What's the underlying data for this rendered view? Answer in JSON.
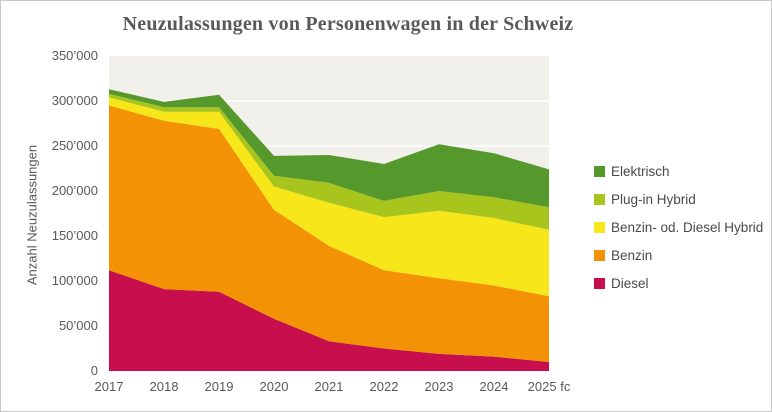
{
  "chart": {
    "title": "Neuzulassungen von Personenwagen in der Schweiz",
    "y_axis_title": "Anzahl Neuzulassungen"
  },
  "chart_data": {
    "type": "area",
    "stacked": true,
    "title": "Neuzulassungen von Personenwagen in der Schweiz",
    "xlabel": "",
    "ylabel": "Anzahl Neuzulassungen",
    "categories": [
      "2017",
      "2018",
      "2019",
      "2020",
      "2021",
      "2022",
      "2023",
      "2024",
      "2025 fc"
    ],
    "series": [
      {
        "name": "Diesel",
        "color": "#c80f4d",
        "values": [
          112000,
          91000,
          88000,
          58000,
          33000,
          25000,
          19000,
          16000,
          10000
        ]
      },
      {
        "name": "Benzin",
        "color": "#f39204",
        "values": [
          183000,
          187000,
          181000,
          121000,
          106000,
          87000,
          84000,
          79000,
          73000
        ]
      },
      {
        "name": "Benzin- od. Diesel Hybrid",
        "color": "#f7e619",
        "values": [
          9000,
          10000,
          19000,
          26000,
          48000,
          59000,
          75000,
          75000,
          74000
        ]
      },
      {
        "name": "Plug-in Hybrid",
        "color": "#a7c51c",
        "values": [
          4000,
          5000,
          5000,
          12000,
          22000,
          18000,
          22000,
          23000,
          25000
        ]
      },
      {
        "name": "Elektrisch",
        "color": "#55992d",
        "values": [
          5000,
          6000,
          14000,
          22000,
          31000,
          41000,
          52000,
          49000,
          42000
        ]
      }
    ],
    "ylim": [
      0,
      350000
    ],
    "y_tick_step": 50000,
    "y_tick_labels": [
      "0",
      "50’000",
      "100’000",
      "150’000",
      "200’000",
      "250’000",
      "300’000",
      "350’000"
    ],
    "grid": true,
    "legend_position": "right",
    "legend_order_top_to_bottom": [
      "Elektrisch",
      "Plug-in Hybrid",
      "Benzin- od. Diesel Hybrid",
      "Benzin",
      "Diesel"
    ]
  },
  "colors": {
    "plot_background": "#f2f0ea",
    "gridline": "#ffffff",
    "axis_text": "#595959",
    "title_text": "#595959",
    "legend_text": "#4a4a4a",
    "frame_border": "#c9c9c9",
    "page_background": "#ffffff"
  }
}
